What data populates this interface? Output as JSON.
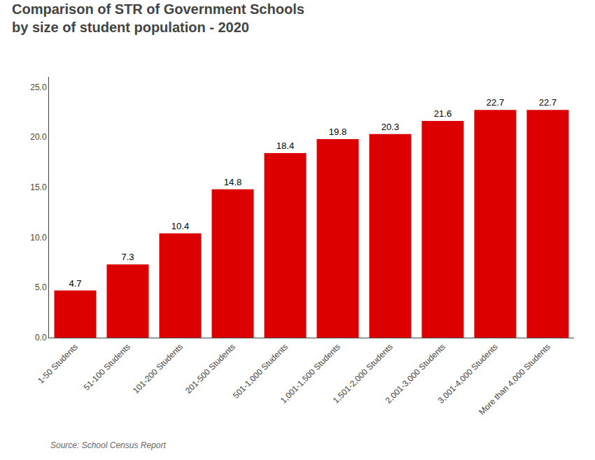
{
  "chart_data": {
    "type": "bar",
    "title": "Comparison of STR of Government Schools",
    "subtitle": "by size of student population - 2020",
    "categories": [
      "1-50 Students",
      "51-100 Students",
      "101-200 Students",
      "201-500 Students",
      "501-1,000 Students",
      "1,001-1,500 Students",
      "1,501-2,000 Students",
      "2,001-3,000 Students",
      "3,001-4,000 Students",
      "More than 4,000 Students"
    ],
    "values": [
      4.7,
      7.3,
      10.4,
      14.8,
      18.4,
      19.8,
      20.3,
      21.6,
      22.7,
      22.7
    ],
    "color": "#DD0000",
    "ylim": [
      0,
      26.0
    ],
    "yticks": [
      {
        "value": 0,
        "label": "0.0"
      },
      {
        "value": 5,
        "label": "5.0"
      },
      {
        "value": 10,
        "label": "10.0"
      },
      {
        "value": 15,
        "label": "15.0"
      },
      {
        "value": 20,
        "label": "20.0"
      },
      {
        "value": 25,
        "label": "25.0"
      }
    ],
    "grid": false,
    "data_labels": true,
    "annotations": [
      "Source: School Census Report"
    ]
  }
}
